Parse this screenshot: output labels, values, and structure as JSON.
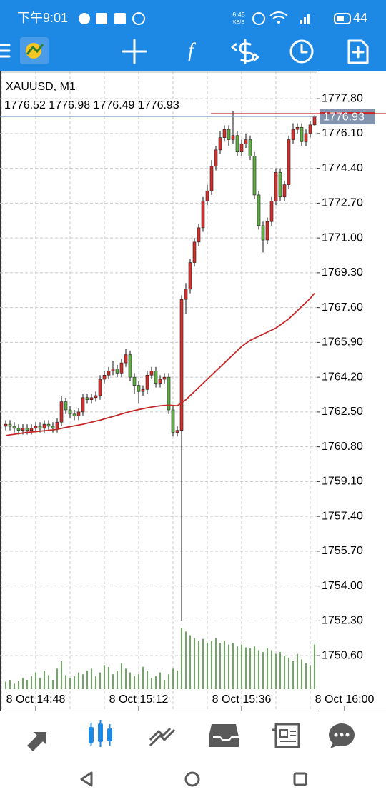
{
  "status_bar": {
    "time": "下午9:01",
    "speed": "6.45",
    "speed_unit": "KB/S",
    "battery": "44"
  },
  "chart_data": {
    "type": "candlestick",
    "title": "XAUUSD, M1",
    "open": [
      1761.8,
      1761.9,
      1761.8,
      1761.7,
      1761.6,
      1761.7,
      1761.6,
      1761.7,
      1761.8,
      1761.7,
      1761.9,
      1761.8,
      1761.7,
      1762.0,
      1763.0,
      1762.6,
      1762.4,
      1762.3,
      1762.5,
      1763.2,
      1763.1,
      1763.2,
      1763.3,
      1764.1,
      1764.3,
      1764.5,
      1764.6,
      1764.4,
      1764.9,
      1765.3,
      1764.2,
      1763.8,
      1763.5,
      1763.6,
      1764.3,
      1764.5,
      1763.9,
      1764.1,
      1764.2,
      1762.6,
      1761.5,
      1761.6,
      1768.0,
      1768.5,
      1769.8,
      1770.8,
      1771.5,
      1772.8,
      1773.3,
      1774.5,
      1775.3,
      1775.9,
      1776.3,
      1775.8,
      1776.0,
      1775.2,
      1775.6,
      1775.8,
      1775.0,
      1773.1,
      1771.6,
      1770.9,
      1771.8,
      1772.8,
      1774.2,
      1773.0,
      1773.6,
      1775.8,
      1776.3,
      1776.4,
      1775.7,
      1776.1,
      1776.52
    ],
    "high": [
      1762.1,
      1762.1,
      1762.0,
      1761.9,
      1761.9,
      1761.9,
      1761.9,
      1762.0,
      1762.0,
      1762.1,
      1762.1,
      1762.0,
      1762.2,
      1763.3,
      1763.2,
      1762.8,
      1762.6,
      1762.7,
      1763.4,
      1763.4,
      1763.4,
      1763.5,
      1764.3,
      1764.5,
      1764.7,
      1765.0,
      1764.8,
      1765.1,
      1765.6,
      1765.5,
      1764.4,
      1764.0,
      1763.8,
      1764.5,
      1764.7,
      1764.7,
      1764.3,
      1764.4,
      1764.4,
      1762.8,
      1761.8,
      1768.2,
      1768.8,
      1770.0,
      1771.0,
      1771.7,
      1773.0,
      1773.6,
      1774.8,
      1775.5,
      1776.2,
      1776.5,
      1776.5,
      1777.2,
      1776.2,
      1775.8,
      1776.1,
      1776.0,
      1775.2,
      1773.3,
      1771.8,
      1772.0,
      1773.0,
      1774.4,
      1774.4,
      1773.8,
      1776.0,
      1776.6,
      1776.6,
      1776.6,
      1776.3,
      1776.7,
      1776.98
    ],
    "low": [
      1761.6,
      1761.6,
      1761.5,
      1761.4,
      1761.4,
      1761.4,
      1761.4,
      1761.5,
      1761.5,
      1761.5,
      1761.6,
      1761.5,
      1761.5,
      1761.8,
      1762.4,
      1762.2,
      1762.1,
      1762.1,
      1762.3,
      1762.9,
      1762.9,
      1763.0,
      1763.1,
      1763.9,
      1764.1,
      1764.3,
      1764.2,
      1764.2,
      1764.7,
      1764.0,
      1763.4,
      1762.9,
      1763.3,
      1763.4,
      1764.1,
      1763.7,
      1763.7,
      1763.9,
      1762.4,
      1761.3,
      1761.3,
      1752.3,
      1767.3,
      1768.3,
      1769.6,
      1770.6,
      1771.3,
      1772.6,
      1773.1,
      1774.3,
      1775.1,
      1775.7,
      1775.5,
      1775.6,
      1775.0,
      1775.0,
      1775.4,
      1774.8,
      1772.9,
      1771.4,
      1770.3,
      1770.7,
      1771.6,
      1772.6,
      1772.8,
      1772.8,
      1773.4,
      1775.6,
      1776.1,
      1775.5,
      1775.5,
      1775.9,
      1776.49
    ],
    "close": [
      1761.9,
      1761.8,
      1761.7,
      1761.6,
      1761.7,
      1761.6,
      1761.7,
      1761.8,
      1761.7,
      1761.9,
      1761.8,
      1761.7,
      1762.0,
      1763.0,
      1762.6,
      1762.4,
      1762.3,
      1762.5,
      1763.2,
      1763.1,
      1763.2,
      1763.3,
      1764.1,
      1764.3,
      1764.5,
      1764.6,
      1764.4,
      1764.9,
      1765.3,
      1764.2,
      1763.8,
      1763.5,
      1763.6,
      1764.3,
      1764.5,
      1763.9,
      1764.1,
      1764.2,
      1762.6,
      1761.5,
      1761.6,
      1768.0,
      1768.5,
      1769.8,
      1770.8,
      1771.5,
      1772.8,
      1773.3,
      1774.5,
      1775.3,
      1775.9,
      1776.3,
      1775.8,
      1776.0,
      1775.2,
      1775.6,
      1775.8,
      1775.0,
      1773.1,
      1771.6,
      1770.9,
      1771.8,
      1772.8,
      1774.2,
      1773.0,
      1773.6,
      1775.8,
      1776.3,
      1776.4,
      1775.7,
      1776.1,
      1776.52,
      1776.93
    ],
    "ma": [
      1761.35,
      1761.38,
      1761.41,
      1761.44,
      1761.47,
      1761.5,
      1761.52,
      1761.54,
      1761.56,
      1761.58,
      1761.6,
      1761.62,
      1761.65,
      1761.7,
      1761.74,
      1761.78,
      1761.82,
      1761.86,
      1761.9,
      1761.95,
      1762.0,
      1762.05,
      1762.1,
      1762.16,
      1762.22,
      1762.28,
      1762.34,
      1762.4,
      1762.46,
      1762.52,
      1762.57,
      1762.62,
      1762.66,
      1762.7,
      1762.74,
      1762.77,
      1762.8,
      1762.82,
      1762.83,
      1762.82,
      1762.8,
      1762.95,
      1763.1,
      1763.3,
      1763.5,
      1763.7,
      1763.9,
      1764.1,
      1764.3,
      1764.5,
      1764.7,
      1764.9,
      1765.1,
      1765.3,
      1765.5,
      1765.7,
      1765.85,
      1766.0,
      1766.1,
      1766.2,
      1766.3,
      1766.4,
      1766.5,
      1766.6,
      1766.75,
      1766.9,
      1767.05,
      1767.25,
      1767.45,
      1767.65,
      1767.85,
      1768.05,
      1768.3
    ],
    "volume": [
      8,
      10,
      6,
      9,
      12,
      10,
      14,
      18,
      12,
      20,
      15,
      10,
      22,
      30,
      15,
      12,
      14,
      18,
      16,
      20,
      22,
      14,
      18,
      26,
      24,
      16,
      20,
      28,
      22,
      18,
      14,
      16,
      24,
      20,
      12,
      14,
      18,
      10,
      16,
      22,
      20,
      66,
      62,
      58,
      55,
      52,
      54,
      50,
      52,
      55,
      50,
      52,
      48,
      50,
      46,
      48,
      45,
      44,
      46,
      42,
      40,
      44,
      42,
      38,
      40,
      36,
      34,
      30,
      38,
      32,
      28,
      26,
      48
    ],
    "vlim": [
      0,
      100
    ],
    "up_color": "#d0312d",
    "down_color": "#5fae45",
    "ma_color": "#c62828",
    "volume_color": "#3d8b2e",
    "last_price": {
      "value": 1776.93,
      "label": "1776.93"
    },
    "ask": 1777.07,
    "ylim": [
      1747.92,
      1779.13
    ],
    "yticks": [
      {
        "value": 1777.8,
        "label": "1777.80"
      },
      {
        "value": 1776.1,
        "label": "1776.10"
      },
      {
        "value": 1774.4,
        "label": "1774.40"
      },
      {
        "value": 1772.7,
        "label": "1772.70"
      },
      {
        "value": 1771.0,
        "label": "1771.00"
      },
      {
        "value": 1769.3,
        "label": "1769.30"
      },
      {
        "value": 1767.6,
        "label": "1767.60"
      },
      {
        "value": 1765.9,
        "label": "1765.90"
      },
      {
        "value": 1764.2,
        "label": "1764.20"
      },
      {
        "value": 1762.5,
        "label": "1762.50"
      },
      {
        "value": 1760.8,
        "label": "1760.80"
      },
      {
        "value": 1759.1,
        "label": "1759.10"
      },
      {
        "value": 1757.4,
        "label": "1757.40"
      },
      {
        "value": 1755.7,
        "label": "1755.70"
      },
      {
        "value": 1754.0,
        "label": "1754.00"
      },
      {
        "value": 1752.3,
        "label": "1752.30"
      },
      {
        "value": 1750.6,
        "label": "1750.60"
      }
    ],
    "xticks": [
      {
        "value": 7,
        "label": "8 Oct 14:48"
      },
      {
        "value": 31,
        "label": "8 Oct 15:12"
      },
      {
        "value": 55,
        "label": "8 Oct 15:36"
      },
      {
        "value": 79,
        "label": "8 Oct 16:00"
      }
    ],
    "grid": true
  }
}
